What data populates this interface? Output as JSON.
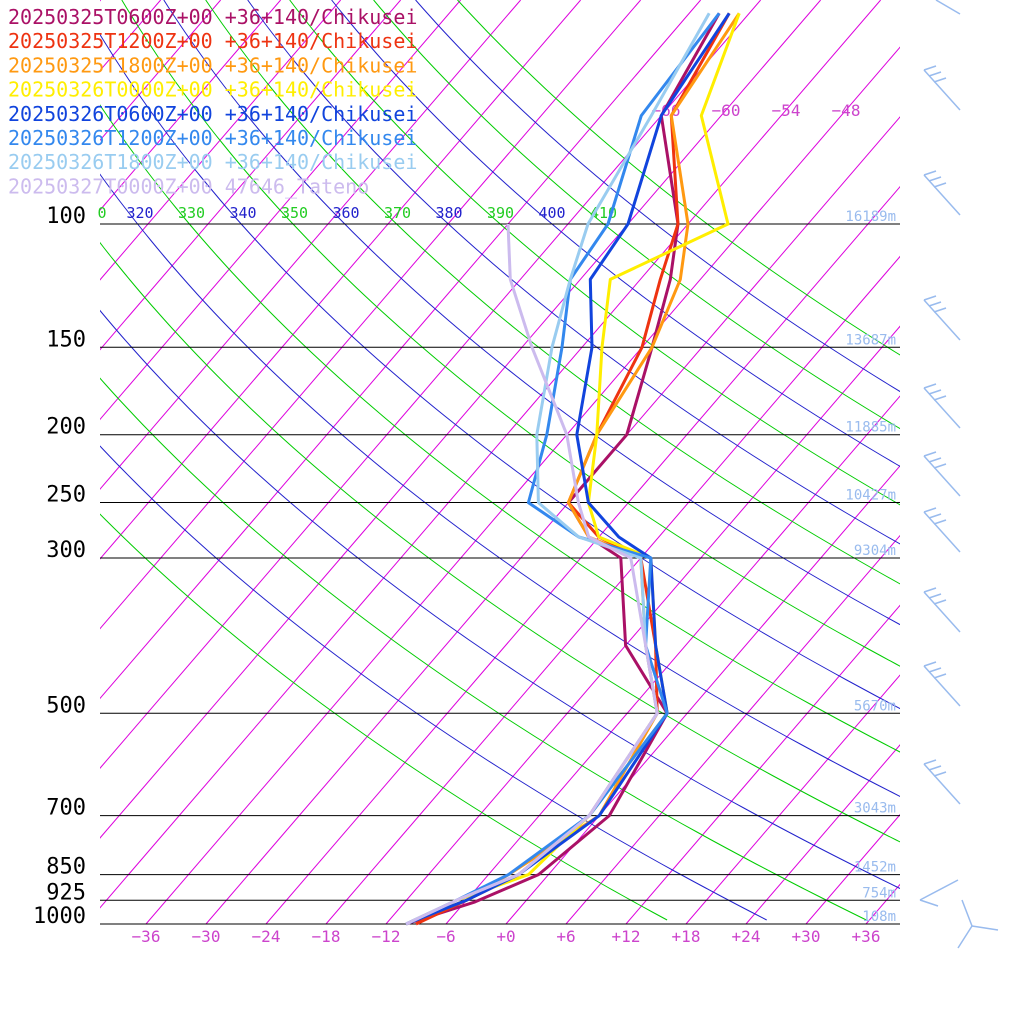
{
  "chart_data": {
    "type": "line",
    "title": "",
    "xlabel": "",
    "ylabel": "",
    "pressure_levels": [
      100,
      150,
      200,
      250,
      300,
      500,
      700,
      850,
      925,
      1000
    ],
    "pressure_labels": [
      "100",
      "150",
      "200",
      "250",
      "300",
      "500",
      "700",
      "850",
      "925",
      "1000"
    ],
    "x_ticks": [
      {
        "v": -36,
        "t": "−36"
      },
      {
        "v": -30,
        "t": "−30"
      },
      {
        "v": -24,
        "t": "−24"
      },
      {
        "v": -18,
        "t": "−18"
      },
      {
        "v": -12,
        "t": "−12"
      },
      {
        "v": -6,
        "t": "−6"
      },
      {
        "v": 0,
        "t": "+0"
      },
      {
        "v": 6,
        "t": "+6"
      },
      {
        "v": 12,
        "t": "+12"
      },
      {
        "v": 18,
        "t": "+18"
      },
      {
        "v": 24,
        "t": "+24"
      },
      {
        "v": 30,
        "t": "+30"
      },
      {
        "v": 36,
        "t": "+36"
      }
    ],
    "top_isotherm_labels": [
      "−66",
      "−60",
      "−54",
      "−48"
    ],
    "theta_labels": [
      "0",
      "320",
      "330",
      "340",
      "350",
      "360",
      "370",
      "380",
      "390",
      "400",
      "410"
    ],
    "height_labels": [
      {
        "p": 100,
        "t": "16189m"
      },
      {
        "p": 150,
        "t": "13687m"
      },
      {
        "p": 200,
        "t": "11885m"
      },
      {
        "p": 250,
        "t": "10427m"
      },
      {
        "p": 300,
        "t": "9304m"
      },
      {
        "p": 500,
        "t": "5670m"
      },
      {
        "p": 700,
        "t": "3043m"
      },
      {
        "p": 850,
        "t": "1452m"
      },
      {
        "p": 925,
        "t": "754m"
      },
      {
        "p": 1000,
        "t": "108m"
      }
    ],
    "colors": {
      "isotherm": "#dd00dd",
      "dry_adiabat_a": "#2222cc",
      "dry_adiabat_b": "#00cc00",
      "isobar": "#000000",
      "height_label": "#99bbee",
      "x_tick_label": "#cc44cc",
      "theta_label_a": "#2222cc",
      "theta_label_b": "#22cc22",
      "barb": "#99bbee"
    },
    "series": [
      {
        "name": "20250325T0600Z+00 +36+140/Chikusei",
        "color": "#aa1166",
        "points": [
          [
            -10,
            1000
          ],
          [
            -5,
            930
          ],
          [
            -1,
            850
          ],
          [
            1,
            700
          ],
          [
            -2,
            500
          ],
          [
            -12,
            400
          ],
          [
            -20,
            300
          ],
          [
            -25,
            280
          ],
          [
            -30,
            250
          ],
          [
            -30,
            200
          ],
          [
            -35,
            150
          ],
          [
            -39,
            120
          ],
          [
            -43,
            100
          ],
          [
            -54,
            70
          ],
          [
            -57,
            50
          ]
        ]
      },
      {
        "name": "20250325T1200Z+00 +36+140/Chikusei",
        "color": "#ee3311",
        "points": [
          [
            -9,
            1000
          ],
          [
            -6,
            925
          ],
          [
            -3,
            850
          ],
          [
            -1,
            700
          ],
          [
            -3,
            500
          ],
          [
            -9,
            400
          ],
          [
            -18,
            300
          ],
          [
            -24,
            280
          ],
          [
            -30,
            250
          ],
          [
            -33,
            200
          ],
          [
            -36,
            150
          ],
          [
            -40,
            120
          ],
          [
            -43,
            100
          ],
          [
            -53,
            70
          ],
          [
            -56,
            50
          ]
        ]
      },
      {
        "name": "20250325T1800Z+00 +36+140/Chikusei",
        "color": "#ff9911",
        "points": [
          [
            -10,
            1000
          ],
          [
            -6,
            925
          ],
          [
            -4,
            850
          ],
          [
            0,
            700
          ],
          [
            -3,
            500
          ],
          [
            -10,
            400
          ],
          [
            -18,
            300
          ],
          [
            -25,
            280
          ],
          [
            -30,
            250
          ],
          [
            -33,
            200
          ],
          [
            -35,
            150
          ],
          [
            -38,
            120
          ],
          [
            -42,
            100
          ],
          [
            -53,
            70
          ],
          [
            -55,
            50
          ]
        ]
      },
      {
        "name": "20250326T0000Z+00 +36+140/Chikusei",
        "color": "#ffee00",
        "points": [
          [
            -10,
            1000
          ],
          [
            -7,
            925
          ],
          [
            -2,
            850
          ],
          [
            -1,
            700
          ],
          [
            -2,
            500
          ],
          [
            -9,
            400
          ],
          [
            -17,
            300
          ],
          [
            -24,
            280
          ],
          [
            -28,
            250
          ],
          [
            -33,
            200
          ],
          [
            -40,
            150
          ],
          [
            -45,
            120
          ],
          [
            -38,
            100
          ],
          [
            -50,
            70
          ],
          [
            -55,
            50
          ]
        ]
      },
      {
        "name": "20250326T0600Z+00 +36+140/Chikusei",
        "color": "#1144dd",
        "points": [
          [
            -10,
            1000
          ],
          [
            -6,
            925
          ],
          [
            -3,
            850
          ],
          [
            0,
            700
          ],
          [
            -2,
            500
          ],
          [
            -9,
            400
          ],
          [
            -17,
            300
          ],
          [
            -22,
            280
          ],
          [
            -28,
            250
          ],
          [
            -35,
            200
          ],
          [
            -41,
            150
          ],
          [
            -47,
            120
          ],
          [
            -48,
            100
          ],
          [
            -54,
            70
          ],
          [
            -56,
            50
          ]
        ]
      },
      {
        "name": "20250326T1200Z+00 +36+140/Chikusei",
        "color": "#3388ee",
        "points": [
          [
            -10,
            1000
          ],
          [
            -7,
            925
          ],
          [
            -4,
            850
          ],
          [
            -1,
            700
          ],
          [
            -2,
            500
          ],
          [
            -10,
            400
          ],
          [
            -17,
            300
          ],
          [
            -26,
            280
          ],
          [
            -34,
            250
          ],
          [
            -38,
            200
          ],
          [
            -44,
            150
          ],
          [
            -49,
            120
          ],
          [
            -50,
            100
          ],
          [
            -56,
            70
          ],
          [
            -57,
            50
          ]
        ]
      },
      {
        "name": "20250326T1800Z+00 +36+140/Chikusei",
        "color": "#99ccf0",
        "points": [
          [
            -10,
            1000
          ],
          [
            -7,
            925
          ],
          [
            -3,
            850
          ],
          [
            -1,
            700
          ],
          [
            -3,
            500
          ],
          [
            -10,
            400
          ],
          [
            -18,
            300
          ],
          [
            -26,
            280
          ],
          [
            -33,
            250
          ],
          [
            -39,
            200
          ],
          [
            -45,
            150
          ],
          [
            -49,
            120
          ],
          [
            -52,
            100
          ],
          [
            -55,
            70
          ],
          [
            -58,
            50
          ]
        ]
      },
      {
        "name": "20250327T0000Z+00 47646_Tateno",
        "color": "#ccbbee",
        "points": [
          [
            -10,
            1000
          ],
          [
            -7,
            925
          ],
          [
            -3,
            850
          ],
          [
            -1,
            700
          ],
          [
            -3,
            500
          ],
          [
            -10,
            400
          ],
          [
            -19,
            300
          ],
          [
            -25,
            280
          ],
          [
            -29,
            250
          ],
          [
            -36,
            200
          ],
          [
            -47,
            150
          ],
          [
            -55,
            120
          ],
          [
            -60,
            100
          ]
        ]
      }
    ]
  }
}
